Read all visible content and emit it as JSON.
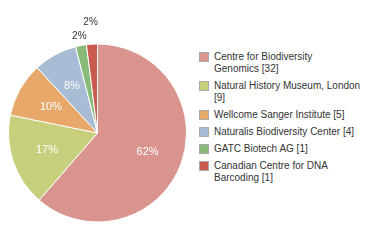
{
  "chart_data": {
    "type": "pie",
    "categories": [
      "Centre for Biodiversity\nGenomics [32]",
      "Natural History Museum, London [9]",
      "Wellcome Sanger Institute [5]",
      "Naturalis Biodiversity Center [4]",
      "GATC Biotech AG [1]",
      "Canadian Centre for DNA\nBarcoding [1]"
    ],
    "values": [
      62,
      17,
      10,
      8,
      2,
      2
    ],
    "value_labels": [
      "62%",
      "17%",
      "10%",
      "8%",
      "2%",
      "2%"
    ],
    "colors": [
      "#d9948e",
      "#c8cf7c",
      "#e8a86a",
      "#a8bcd5",
      "#8aba78",
      "#c85a50"
    ],
    "data_labels": true,
    "legend": "right"
  }
}
